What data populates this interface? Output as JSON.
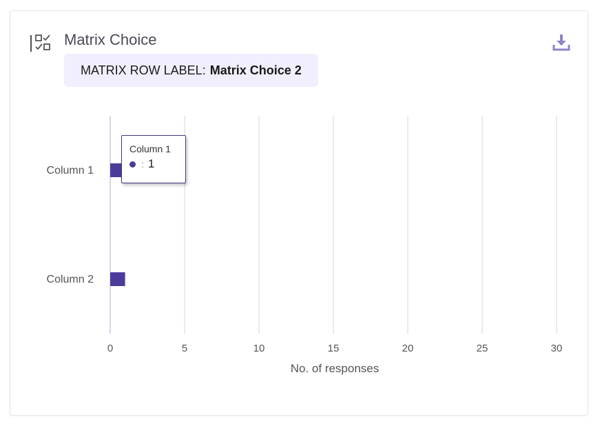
{
  "question": {
    "title": "Matrix Choice",
    "icon": "matrix-choice-icon"
  },
  "download": {
    "icon": "download-icon"
  },
  "row_label": {
    "prefix": "MATRIX ROW LABEL:",
    "value": "Matrix Choice 2"
  },
  "tooltip": {
    "category": "Column 1",
    "separator": ":",
    "value": "1"
  },
  "colors": {
    "bar": "#4d3b9b",
    "grid": "#e2e2ea",
    "axis": "#c9c9e0",
    "pill_bg": "#f1effd",
    "tooltip_border": "#3f3684"
  },
  "chart_data": {
    "type": "bar",
    "orientation": "horizontal",
    "categories": [
      "Column 1",
      "Column 2"
    ],
    "values": [
      1,
      1
    ],
    "xlabel": "No. of responses",
    "ylabel": "",
    "xlim": [
      0,
      30
    ],
    "xticks": [
      0,
      5,
      10,
      15,
      20,
      25,
      30
    ],
    "grid": true,
    "legend": "none"
  }
}
